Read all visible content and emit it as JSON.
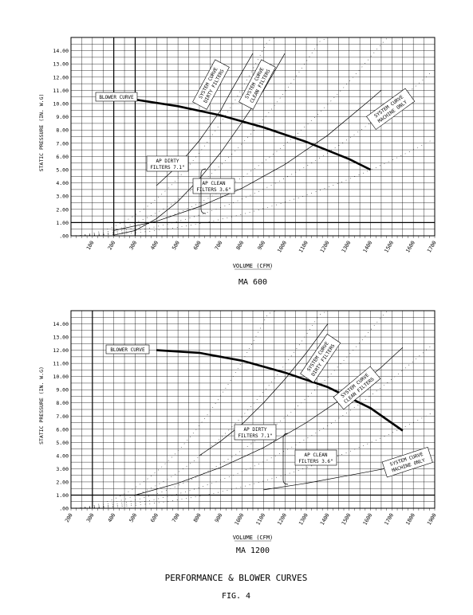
{
  "figure": {
    "title": "PERFORMANCE & BLOWER CURVES",
    "number": "FIG. 4"
  },
  "chart_data": [
    {
      "type": "line",
      "caption": "MA 600",
      "xlabel": "VOLUME (CFM)",
      "ylabel": "STATIC PRESSURE (IN. W.G)",
      "xlim": [
        0,
        1700
      ],
      "ylim": [
        0,
        15
      ],
      "x_ticks": [
        100,
        200,
        300,
        400,
        500,
        600,
        700,
        800,
        900,
        1000,
        1100,
        1200,
        1300,
        1400,
        1500,
        1600,
        1700
      ],
      "y_ticks": [
        ".00",
        "1.00",
        "2.00",
        "3.00",
        "4.00",
        "5.00",
        "6.00",
        "7.00",
        "8.00",
        "9.00",
        "10.00",
        "11.00",
        "12.00",
        "13.00",
        "14.00"
      ],
      "reference_lines": {
        "x": [
          200,
          300
        ],
        "y": [
          1.0
        ]
      },
      "series": [
        {
          "name": "BLOWER CURVE",
          "style": "blower",
          "x": [
            300,
            500,
            700,
            900,
            1100,
            1300,
            1400
          ],
          "y": [
            10.3,
            9.8,
            9.1,
            8.2,
            7.1,
            5.8,
            5.0
          ]
        },
        {
          "name": "SYSTEM CURVE DIRTY FILTERS",
          "style": "system",
          "x": [
            400,
            500,
            600,
            700,
            750,
            850
          ],
          "y": [
            3.8,
            5.3,
            7.2,
            9.5,
            11.0,
            13.8
          ]
        },
        {
          "name": "SYSTEM CURVE CLEAN FILTERS",
          "style": "system",
          "x": [
            200,
            300,
            400,
            500,
            600,
            700,
            800,
            900,
            1000
          ],
          "y": [
            0.05,
            0.4,
            1.3,
            2.6,
            4.3,
            6.3,
            8.6,
            11.0,
            13.8
          ]
        },
        {
          "name": "SYSTEM CURVE MACHINE ONLY",
          "style": "system",
          "x": [
            200,
            400,
            600,
            800,
            1000,
            1200,
            1400,
            1450
          ],
          "y": [
            0.4,
            1.1,
            2.2,
            3.6,
            5.4,
            7.6,
            10.3,
            11.0
          ]
        }
      ],
      "annotations": {
        "blower_label": "BLOWER CURVE",
        "sys_dirty": [
          "SYSTEM CURVE",
          "DIRTY FILTERS"
        ],
        "sys_clean": [
          "SYSTEM CURVE",
          "CLEAN FILTERS"
        ],
        "sys_machine": [
          "SYSTEM CURVE",
          "MACHINE ONLY"
        ],
        "filter_dirty": [
          "AP DIRTY",
          "FILTERS 7.1\""
        ],
        "filter_clean": [
          "AP CLEAN",
          "FILTERS 3.6\""
        ]
      }
    },
    {
      "type": "line",
      "caption": "MA 1200",
      "xlabel": "VOLUME (CFM)",
      "ylabel": "STATIC PRESSURE (IN. W.G)",
      "xlim": [
        200,
        1900
      ],
      "ylim": [
        0,
        15
      ],
      "x_ticks": [
        200,
        300,
        400,
        500,
        600,
        700,
        800,
        900,
        1000,
        1100,
        1200,
        1300,
        1400,
        1500,
        1600,
        1700,
        1800,
        1900
      ],
      "y_ticks": [
        ".00",
        "1.00",
        "2.00",
        "3.00",
        "4.00",
        "5.00",
        "6.00",
        "7.00",
        "8.00",
        "9.00",
        "10.00",
        "11.00",
        "12.00",
        "13.00",
        "14.00"
      ],
      "reference_lines": {
        "x": [
          300
        ],
        "y": [
          1.0
        ]
      },
      "series": [
        {
          "name": "BLOWER CURVE",
          "style": "blower",
          "x": [
            600,
            800,
            1000,
            1200,
            1400,
            1600,
            1750
          ],
          "y": [
            12.0,
            11.8,
            11.2,
            10.3,
            9.2,
            7.6,
            5.9
          ]
        },
        {
          "name": "SYSTEM CURVE DIRTY FILTERS",
          "style": "system",
          "x": [
            800,
            900,
            1000,
            1100,
            1200,
            1300,
            1400
          ],
          "y": [
            4.0,
            5.1,
            6.4,
            8.0,
            9.8,
            11.8,
            14.0
          ]
        },
        {
          "name": "SYSTEM CURVE CLEAN FILTERS",
          "style": "system",
          "x": [
            500,
            700,
            900,
            1100,
            1300,
            1500,
            1650,
            1750
          ],
          "y": [
            1.0,
            1.9,
            3.1,
            4.6,
            6.5,
            8.7,
            10.7,
            12.2
          ]
        },
        {
          "name": "SYSTEM CURVE MACHINE ONLY",
          "style": "system",
          "x": [
            1100,
            1300,
            1500,
            1700,
            1850
          ],
          "y": [
            1.4,
            1.9,
            2.5,
            3.1,
            3.6
          ]
        }
      ],
      "annotations": {
        "blower_label": "BLOWER CURVE",
        "sys_dirty": [
          "SYSTEM CURVE",
          "DIRTY FILTERS"
        ],
        "sys_clean": [
          "SYSTEM CURVE",
          "CLEAN FILTERS"
        ],
        "sys_machine": [
          "SYSTEM CURVE",
          "MACHINE ONLY"
        ],
        "filter_dirty": [
          "AP DIRTY",
          "FILTERS 7.1\""
        ],
        "filter_clean": [
          "AP CLEAN",
          "FILTERS 3.6\""
        ]
      }
    }
  ]
}
